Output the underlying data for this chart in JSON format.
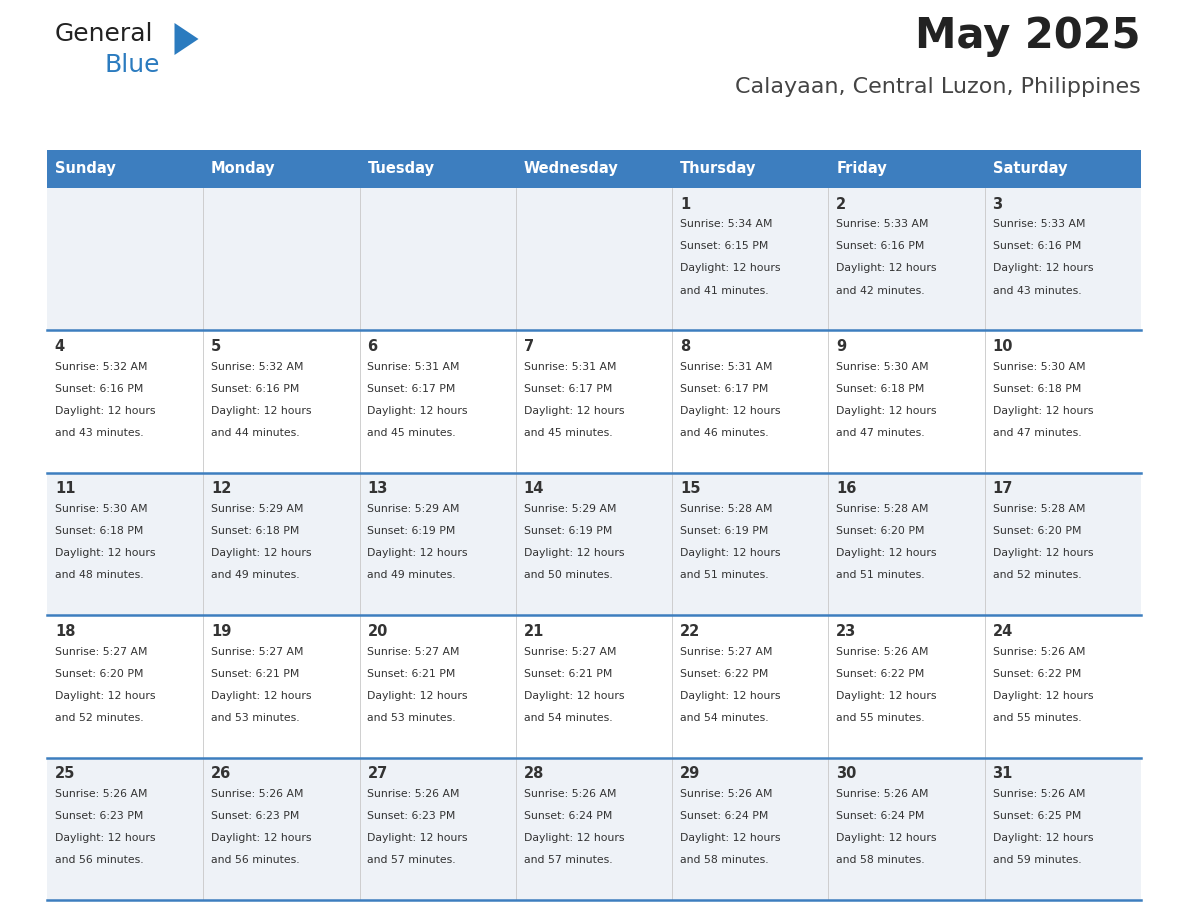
{
  "title": "May 2025",
  "subtitle": "Calayaan, Central Luzon, Philippines",
  "header_bg": "#3d7ebf",
  "header_text": "#ffffff",
  "row_bg_odd": "#eef2f7",
  "row_bg_even": "#ffffff",
  "day_headers": [
    "Sunday",
    "Monday",
    "Tuesday",
    "Wednesday",
    "Thursday",
    "Friday",
    "Saturday"
  ],
  "calendar": [
    [
      null,
      null,
      null,
      null,
      {
        "day": 1,
        "sunrise": "5:34 AM",
        "sunset": "6:15 PM",
        "daylight": "12 hours and 41 minutes."
      },
      {
        "day": 2,
        "sunrise": "5:33 AM",
        "sunset": "6:16 PM",
        "daylight": "12 hours and 42 minutes."
      },
      {
        "day": 3,
        "sunrise": "5:33 AM",
        "sunset": "6:16 PM",
        "daylight": "12 hours and 43 minutes."
      }
    ],
    [
      {
        "day": 4,
        "sunrise": "5:32 AM",
        "sunset": "6:16 PM",
        "daylight": "12 hours and 43 minutes."
      },
      {
        "day": 5,
        "sunrise": "5:32 AM",
        "sunset": "6:16 PM",
        "daylight": "12 hours and 44 minutes."
      },
      {
        "day": 6,
        "sunrise": "5:31 AM",
        "sunset": "6:17 PM",
        "daylight": "12 hours and 45 minutes."
      },
      {
        "day": 7,
        "sunrise": "5:31 AM",
        "sunset": "6:17 PM",
        "daylight": "12 hours and 45 minutes."
      },
      {
        "day": 8,
        "sunrise": "5:31 AM",
        "sunset": "6:17 PM",
        "daylight": "12 hours and 46 minutes."
      },
      {
        "day": 9,
        "sunrise": "5:30 AM",
        "sunset": "6:18 PM",
        "daylight": "12 hours and 47 minutes."
      },
      {
        "day": 10,
        "sunrise": "5:30 AM",
        "sunset": "6:18 PM",
        "daylight": "12 hours and 47 minutes."
      }
    ],
    [
      {
        "day": 11,
        "sunrise": "5:30 AM",
        "sunset": "6:18 PM",
        "daylight": "12 hours and 48 minutes."
      },
      {
        "day": 12,
        "sunrise": "5:29 AM",
        "sunset": "6:18 PM",
        "daylight": "12 hours and 49 minutes."
      },
      {
        "day": 13,
        "sunrise": "5:29 AM",
        "sunset": "6:19 PM",
        "daylight": "12 hours and 49 minutes."
      },
      {
        "day": 14,
        "sunrise": "5:29 AM",
        "sunset": "6:19 PM",
        "daylight": "12 hours and 50 minutes."
      },
      {
        "day": 15,
        "sunrise": "5:28 AM",
        "sunset": "6:19 PM",
        "daylight": "12 hours and 51 minutes."
      },
      {
        "day": 16,
        "sunrise": "5:28 AM",
        "sunset": "6:20 PM",
        "daylight": "12 hours and 51 minutes."
      },
      {
        "day": 17,
        "sunrise": "5:28 AM",
        "sunset": "6:20 PM",
        "daylight": "12 hours and 52 minutes."
      }
    ],
    [
      {
        "day": 18,
        "sunrise": "5:27 AM",
        "sunset": "6:20 PM",
        "daylight": "12 hours and 52 minutes."
      },
      {
        "day": 19,
        "sunrise": "5:27 AM",
        "sunset": "6:21 PM",
        "daylight": "12 hours and 53 minutes."
      },
      {
        "day": 20,
        "sunrise": "5:27 AM",
        "sunset": "6:21 PM",
        "daylight": "12 hours and 53 minutes."
      },
      {
        "day": 21,
        "sunrise": "5:27 AM",
        "sunset": "6:21 PM",
        "daylight": "12 hours and 54 minutes."
      },
      {
        "day": 22,
        "sunrise": "5:27 AM",
        "sunset": "6:22 PM",
        "daylight": "12 hours and 54 minutes."
      },
      {
        "day": 23,
        "sunrise": "5:26 AM",
        "sunset": "6:22 PM",
        "daylight": "12 hours and 55 minutes."
      },
      {
        "day": 24,
        "sunrise": "5:26 AM",
        "sunset": "6:22 PM",
        "daylight": "12 hours and 55 minutes."
      }
    ],
    [
      {
        "day": 25,
        "sunrise": "5:26 AM",
        "sunset": "6:23 PM",
        "daylight": "12 hours and 56 minutes."
      },
      {
        "day": 26,
        "sunrise": "5:26 AM",
        "sunset": "6:23 PM",
        "daylight": "12 hours and 56 minutes."
      },
      {
        "day": 27,
        "sunrise": "5:26 AM",
        "sunset": "6:23 PM",
        "daylight": "12 hours and 57 minutes."
      },
      {
        "day": 28,
        "sunrise": "5:26 AM",
        "sunset": "6:24 PM",
        "daylight": "12 hours and 57 minutes."
      },
      {
        "day": 29,
        "sunrise": "5:26 AM",
        "sunset": "6:24 PM",
        "daylight": "12 hours and 58 minutes."
      },
      {
        "day": 30,
        "sunrise": "5:26 AM",
        "sunset": "6:24 PM",
        "daylight": "12 hours and 58 minutes."
      },
      {
        "day": 31,
        "sunrise": "5:26 AM",
        "sunset": "6:25 PM",
        "daylight": "12 hours and 59 minutes."
      }
    ]
  ],
  "logo_text1": "General",
  "logo_text2": "Blue",
  "logo_color1": "#222222",
  "logo_color2": "#2b7bbf",
  "logo_triangle_color": "#2b7bbf",
  "title_color": "#222222",
  "subtitle_color": "#444444",
  "cell_text_color": "#333333",
  "cell_day_color": "#333333",
  "divider_color": "#3d7ebf",
  "cell_border_color": "#cccccc",
  "fig_width": 11.88,
  "fig_height": 9.18,
  "dpi": 100
}
